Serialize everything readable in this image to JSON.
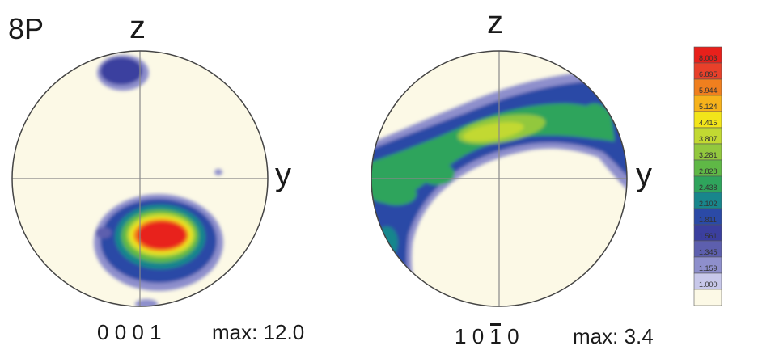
{
  "sample_label": "8P",
  "pole_figures": [
    {
      "top_axis": "z",
      "right_axis": "y",
      "plane": [
        "0",
        "0",
        "0",
        "1"
      ],
      "max_label": "max: 12.0"
    },
    {
      "top_axis": "z",
      "right_axis": "y",
      "plane": [
        "1",
        "0",
        "1",
        "0"
      ],
      "plane_overbar_index": 2,
      "max_label": "max: 3.4"
    }
  ],
  "legend": {
    "levels": [
      {
        "value": "8.003",
        "color": "#e8201b"
      },
      {
        "value": "6.895",
        "color": "#e8402a"
      },
      {
        "value": "5.944",
        "color": "#f07f1e"
      },
      {
        "value": "5.124",
        "color": "#f7b21b"
      },
      {
        "value": "4.415",
        "color": "#f2e51a"
      },
      {
        "value": "3.807",
        "color": "#c2d932"
      },
      {
        "value": "3.281",
        "color": "#92c83e"
      },
      {
        "value": "2.828",
        "color": "#5fb846"
      },
      {
        "value": "2.438",
        "color": "#2fa45c"
      },
      {
        "value": "2.102",
        "color": "#18868c"
      },
      {
        "value": "1.811",
        "color": "#2b4aa6"
      },
      {
        "value": "1.561",
        "color": "#3b3f9f"
      },
      {
        "value": "1.345",
        "color": "#5d5fae"
      },
      {
        "value": "1.159",
        "color": "#8e8fcc"
      },
      {
        "value": "1.000",
        "color": "#c8c8ea"
      },
      {
        "value": "",
        "color": "#fcf9e6"
      }
    ]
  }
}
